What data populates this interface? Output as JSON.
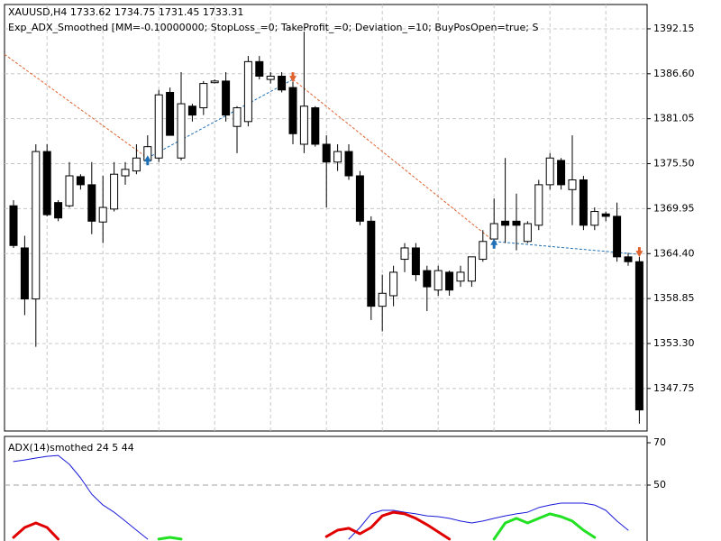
{
  "chart_data": [
    {
      "type": "candlestick",
      "title": "XAUUSD,H4  1733.62 1734.75 1731.45 1733.31",
      "subtitle": "Exp_ADX_Smoothed [MM=-0.10000000; StopLoss_=0; TakeProfit_=0; Deviation_=10; BuyPosOpen=true; S",
      "open": [
        1370.3,
        1365.1,
        1358.8,
        1377.0,
        1370.7,
        1370.3,
        1373.9,
        1372.9,
        1368.3,
        1369.9,
        1374.0,
        1374.6,
        1375.9,
        1376.2,
        1384.3,
        1376.2,
        1382.6,
        1382.4,
        1385.5,
        1385.7,
        1380.1,
        1380.7,
        1388.1,
        1385.9,
        1386.3,
        1384.9,
        1377.9,
        1382.4,
        1377.9,
        1375.7,
        1377.0,
        1374.0,
        1368.4,
        1357.9,
        1359.2,
        1363.7,
        1365.1,
        1362.3,
        1359.9,
        1362.1,
        1361.0,
        1361.0,
        1363.7,
        1366.2,
        1368.4,
        1368.4,
        1365.9,
        1367.9,
        1372.9,
        1375.9,
        1372.3,
        1373.5,
        1367.9,
        1369.3,
        1369.0,
        1364.0,
        1363.4
      ],
      "high": [
        1371.0,
        1366.6,
        1377.9,
        1377.9,
        1371.0,
        1375.7,
        1374.2,
        1375.7,
        1374.0,
        1375.7,
        1375.7,
        1377.9,
        1379.0,
        1384.6,
        1384.9,
        1386.8,
        1382.9,
        1385.7,
        1385.9,
        1386.8,
        1382.6,
        1388.8,
        1388.8,
        1386.8,
        1386.8,
        1385.9,
        1391.8,
        1382.6,
        1379.0,
        1377.9,
        1377.9,
        1374.6,
        1369.0,
        1361.8,
        1362.9,
        1365.7,
        1365.7,
        1362.9,
        1362.9,
        1362.3,
        1362.9,
        1364.0,
        1367.3,
        1371.2,
        1376.2,
        1371.8,
        1368.4,
        1373.5,
        1376.8,
        1376.2,
        1379.0,
        1374.0,
        1370.1,
        1369.6,
        1370.7,
        1364.5,
        1364.0
      ],
      "low": [
        1365.1,
        1356.8,
        1352.9,
        1369.0,
        1368.4,
        1370.1,
        1372.3,
        1366.8,
        1365.7,
        1369.6,
        1372.9,
        1374.2,
        1375.7,
        1375.7,
        1379.0,
        1375.9,
        1380.7,
        1381.5,
        1385.4,
        1380.7,
        1376.8,
        1380.1,
        1385.9,
        1385.4,
        1384.3,
        1377.9,
        1376.8,
        1377.6,
        1370.1,
        1374.6,
        1373.5,
        1367.9,
        1356.2,
        1354.8,
        1357.9,
        1362.1,
        1361.0,
        1357.3,
        1359.2,
        1359.2,
        1360.3,
        1360.3,
        1363.4,
        1365.9,
        1365.7,
        1364.8,
        1365.7,
        1367.3,
        1372.3,
        1372.3,
        1367.9,
        1367.3,
        1367.3,
        1368.4,
        1363.4,
        1362.9,
        1343.4
      ],
      "close": [
        1365.4,
        1358.8,
        1377.0,
        1369.2,
        1368.8,
        1374.0,
        1372.9,
        1368.4,
        1370.1,
        1374.2,
        1374.8,
        1376.2,
        1377.6,
        1384.0,
        1379.0,
        1382.9,
        1381.5,
        1385.4,
        1385.7,
        1381.5,
        1382.4,
        1388.1,
        1386.3,
        1386.3,
        1384.6,
        1379.2,
        1382.6,
        1377.9,
        1375.7,
        1377.0,
        1374.0,
        1368.4,
        1357.9,
        1359.5,
        1362.1,
        1365.1,
        1361.8,
        1360.3,
        1362.3,
        1359.9,
        1362.1,
        1364.0,
        1365.9,
        1368.1,
        1367.9,
        1367.9,
        1368.1,
        1372.9,
        1376.2,
        1372.9,
        1373.5,
        1367.9,
        1369.6,
        1369.0,
        1364.0,
        1363.4,
        1345.1
      ],
      "up_color": "#ffffff",
      "down_color": "#000000",
      "outline_color": "#000000",
      "ylim": [
        1342.5,
        1395.15
      ],
      "yticks": [
        1392.15,
        {
          "value": 1386.6,
          "label": "1386.60"
        },
        1381.05,
        {
          "value": 1375.5,
          "label": "1375.50"
        },
        1369.95,
        {
          "value": 1364.4,
          "label": "1364.40"
        },
        1358.85,
        {
          "value": 1353.3,
          "label": "1353.30"
        },
        1347.75
      ],
      "grid": true,
      "open_trade_price": 1389.0,
      "open_trade_color": "#e0622f",
      "arrows": [
        {
          "index": 12,
          "price": 1376.2,
          "color": "#1f6fb5",
          "direction": "up"
        },
        {
          "index": 25,
          "price": 1385.9,
          "color": "#e0622f",
          "direction": "down"
        },
        {
          "index": 43,
          "price": 1365.9,
          "color": "#1f6fb5",
          "direction": "up"
        },
        {
          "index": 56,
          "price": 1364.3,
          "color": "#e0622f",
          "direction": "down"
        }
      ]
    },
    {
      "type": "line",
      "title": "ADX(14)smothed 24 5 44",
      "ylim": [
        23.6,
        73
      ],
      "yticks": [
        70,
        50
      ],
      "levels": [
        50
      ],
      "series": [
        {
          "color": "#1a1ad8",
          "width": 1,
          "values": [
            61.1,
            61.9,
            62.8,
            63.6,
            64.0,
            59.8,
            53.4,
            45.7,
            40.6,
            37.2,
            33.0,
            28.7,
            24.5,
            null,
            null,
            null,
            null,
            null,
            null,
            null,
            null,
            null,
            null,
            null,
            null,
            null,
            null,
            null,
            null,
            null,
            24.5,
            30.0,
            36.4,
            38.1,
            38.1,
            37.2,
            36.4,
            35.5,
            35.1,
            34.3,
            33.0,
            32.1,
            33.0,
            34.3,
            35.5,
            36.4,
            37.2,
            39.4,
            40.6,
            41.5,
            41.5,
            41.5,
            40.6,
            38.1,
            33.0,
            28.7
          ]
        },
        {
          "color": "#e00000",
          "width": 3,
          "values": [
            25.3,
            30.0,
            32.1,
            30.0,
            24.5,
            null,
            null,
            null,
            null,
            null,
            null,
            null,
            null,
            null,
            null,
            null,
            null,
            null,
            null,
            null,
            null,
            null,
            null,
            null,
            null,
            null,
            null,
            null,
            25.7,
            28.7,
            29.6,
            27.0,
            30.0,
            35.5,
            37.2,
            36.4,
            34.3,
            31.3,
            27.9,
            24.5,
            null,
            null,
            null,
            null,
            null,
            null,
            null,
            null,
            null,
            null,
            null,
            null,
            null,
            null,
            null,
            null,
            null
          ]
        },
        {
          "color": "#22e022",
          "width": 3,
          "values": [
            null,
            null,
            null,
            null,
            null,
            null,
            null,
            null,
            null,
            null,
            null,
            null,
            null,
            24.5,
            25.3,
            24.5,
            null,
            null,
            null,
            null,
            null,
            null,
            null,
            null,
            null,
            null,
            null,
            null,
            null,
            null,
            null,
            null,
            null,
            null,
            null,
            null,
            null,
            null,
            null,
            null,
            null,
            null,
            null,
            24.5,
            32.1,
            34.3,
            32.1,
            34.3,
            36.4,
            35.1,
            33.0,
            28.7,
            25.3,
            null,
            null,
            null,
            null
          ]
        }
      ]
    }
  ]
}
